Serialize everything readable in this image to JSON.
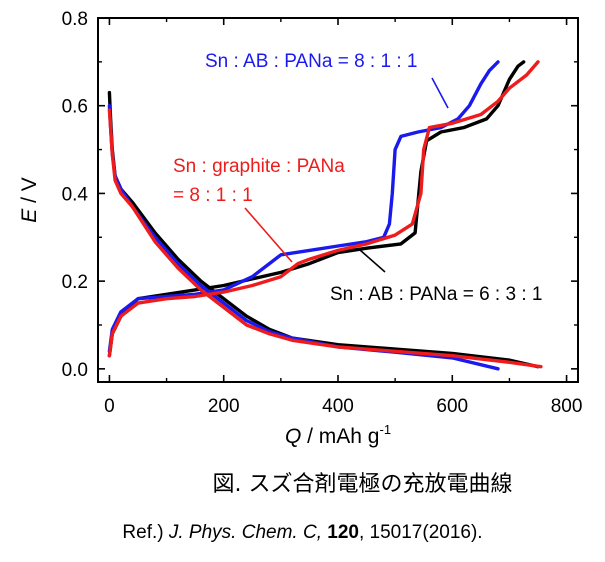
{
  "chart_data": {
    "type": "line",
    "xlabel": {
      "symbol": "Q",
      "unit": " / mAh g",
      "exp": "-1"
    },
    "ylabel": {
      "symbol": "E",
      "unit": " / V"
    },
    "xlim": [
      -20,
      820
    ],
    "ylim": [
      -0.03,
      0.8
    ],
    "xticks": [
      "0",
      "200",
      "400",
      "600",
      "800"
    ],
    "yticks": [
      "0.0",
      "0.2",
      "0.4",
      "0.6",
      "0.8"
    ],
    "xtick_values": [
      0,
      200,
      400,
      600,
      800
    ],
    "ytick_values": [
      0.0,
      0.2,
      0.4,
      0.6,
      0.8
    ],
    "grid": false,
    "legend": "none",
    "series": [
      {
        "color": "#000000",
        "discharge": [
          [
            0,
            0.63
          ],
          [
            2,
            0.57
          ],
          [
            5,
            0.5
          ],
          [
            10,
            0.44
          ],
          [
            20,
            0.41
          ],
          [
            40,
            0.38
          ],
          [
            80,
            0.31
          ],
          [
            120,
            0.25
          ],
          [
            160,
            0.2
          ],
          [
            200,
            0.16
          ],
          [
            240,
            0.12
          ],
          [
            280,
            0.09
          ],
          [
            320,
            0.07
          ],
          [
            400,
            0.055
          ],
          [
            500,
            0.045
          ],
          [
            600,
            0.035
          ],
          [
            700,
            0.02
          ],
          [
            750,
            0.005
          ]
        ],
        "charge": [
          [
            0,
            0.03
          ],
          [
            5,
            0.08
          ],
          [
            20,
            0.12
          ],
          [
            50,
            0.16
          ],
          [
            100,
            0.17
          ],
          [
            150,
            0.18
          ],
          [
            200,
            0.19
          ],
          [
            250,
            0.205
          ],
          [
            300,
            0.22
          ],
          [
            350,
            0.24
          ],
          [
            400,
            0.265
          ],
          [
            450,
            0.275
          ],
          [
            510,
            0.285
          ],
          [
            535,
            0.31
          ],
          [
            545,
            0.45
          ],
          [
            555,
            0.52
          ],
          [
            580,
            0.54
          ],
          [
            620,
            0.55
          ],
          [
            660,
            0.57
          ],
          [
            680,
            0.6
          ],
          [
            700,
            0.66
          ],
          [
            715,
            0.69
          ],
          [
            725,
            0.7
          ]
        ]
      },
      {
        "color": "#1a1aee",
        "discharge": [
          [
            0,
            0.6
          ],
          [
            2,
            0.55
          ],
          [
            5,
            0.49
          ],
          [
            10,
            0.44
          ],
          [
            20,
            0.41
          ],
          [
            40,
            0.37
          ],
          [
            80,
            0.3
          ],
          [
            120,
            0.24
          ],
          [
            160,
            0.19
          ],
          [
            200,
            0.15
          ],
          [
            240,
            0.11
          ],
          [
            280,
            0.085
          ],
          [
            320,
            0.07
          ],
          [
            400,
            0.05
          ],
          [
            500,
            0.038
          ],
          [
            600,
            0.025
          ],
          [
            680,
            0.0
          ]
        ],
        "charge": [
          [
            0,
            0.04
          ],
          [
            5,
            0.09
          ],
          [
            20,
            0.13
          ],
          [
            50,
            0.16
          ],
          [
            100,
            0.165
          ],
          [
            150,
            0.17
          ],
          [
            200,
            0.18
          ],
          [
            250,
            0.21
          ],
          [
            280,
            0.24
          ],
          [
            300,
            0.26
          ],
          [
            350,
            0.27
          ],
          [
            400,
            0.28
          ],
          [
            450,
            0.29
          ],
          [
            480,
            0.3
          ],
          [
            490,
            0.33
          ],
          [
            495,
            0.4
          ],
          [
            500,
            0.5
          ],
          [
            510,
            0.53
          ],
          [
            540,
            0.54
          ],
          [
            580,
            0.55
          ],
          [
            610,
            0.57
          ],
          [
            630,
            0.6
          ],
          [
            650,
            0.65
          ],
          [
            665,
            0.68
          ],
          [
            680,
            0.7
          ]
        ]
      },
      {
        "color": "#ee1c1c",
        "discharge": [
          [
            0,
            0.59
          ],
          [
            2,
            0.55
          ],
          [
            5,
            0.49
          ],
          [
            10,
            0.43
          ],
          [
            20,
            0.4
          ],
          [
            40,
            0.37
          ],
          [
            80,
            0.29
          ],
          [
            120,
            0.23
          ],
          [
            160,
            0.18
          ],
          [
            200,
            0.14
          ],
          [
            240,
            0.1
          ],
          [
            280,
            0.08
          ],
          [
            320,
            0.065
          ],
          [
            400,
            0.05
          ],
          [
            500,
            0.04
          ],
          [
            600,
            0.03
          ],
          [
            700,
            0.015
          ],
          [
            755,
            0.005
          ]
        ],
        "charge": [
          [
            0,
            0.03
          ],
          [
            5,
            0.08
          ],
          [
            20,
            0.12
          ],
          [
            50,
            0.15
          ],
          [
            100,
            0.16
          ],
          [
            150,
            0.165
          ],
          [
            200,
            0.175
          ],
          [
            250,
            0.19
          ],
          [
            300,
            0.21
          ],
          [
            330,
            0.24
          ],
          [
            350,
            0.25
          ],
          [
            400,
            0.27
          ],
          [
            450,
            0.285
          ],
          [
            500,
            0.305
          ],
          [
            530,
            0.33
          ],
          [
            545,
            0.4
          ],
          [
            550,
            0.5
          ],
          [
            560,
            0.55
          ],
          [
            600,
            0.56
          ],
          [
            650,
            0.58
          ],
          [
            680,
            0.61
          ],
          [
            700,
            0.64
          ],
          [
            730,
            0.67
          ],
          [
            750,
            0.7
          ]
        ]
      }
    ],
    "annotations": [
      {
        "text": "Sn : AB : PANa = 8 : 1 : 1",
        "color": "#1a1aee"
      },
      {
        "text": "Sn : graphite : PANa",
        "text2": "= 8 : 1 : 1",
        "color": "#ee1c1c"
      },
      {
        "text": "Sn : AB : PANa = 6 : 3 : 1",
        "color": "#000000"
      }
    ]
  },
  "caption": "図.  スズ合剤電極の充放電曲線",
  "reference": {
    "prefix": "Ref.) ",
    "journal": "J. Phys. Chem. C,",
    "volume": "120",
    "rest": ", 15017(2016)."
  }
}
